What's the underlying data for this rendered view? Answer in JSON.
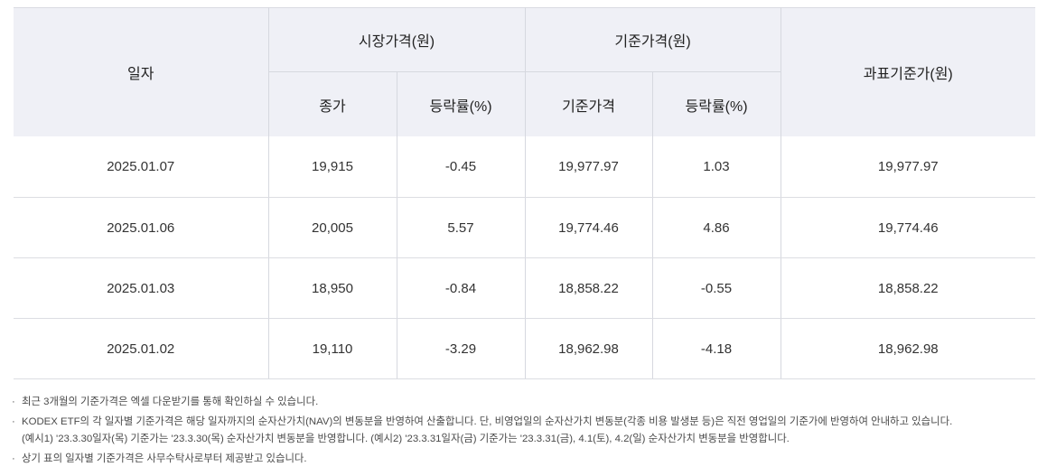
{
  "table": {
    "headers": {
      "date": "일자",
      "market_price_group": "시장가격(원)",
      "close": "종가",
      "market_change": "등락률(%)",
      "nav_group": "기준가격(원)",
      "nav": "기준가격",
      "nav_change": "등락률(%)",
      "tax_base": "과표기준가(원)"
    },
    "rows": [
      {
        "date": "2025.01.07",
        "close": "19,915",
        "market_change": "-0.45",
        "nav": "19,977.97",
        "nav_change": "1.03",
        "tax_base": "19,977.97"
      },
      {
        "date": "2025.01.06",
        "close": "20,005",
        "market_change": "5.57",
        "nav": "19,774.46",
        "nav_change": "4.86",
        "tax_base": "19,774.46"
      },
      {
        "date": "2025.01.03",
        "close": "18,950",
        "market_change": "-0.84",
        "nav": "18,858.22",
        "nav_change": "-0.55",
        "tax_base": "18,858.22"
      },
      {
        "date": "2025.01.02",
        "close": "19,110",
        "market_change": "-3.29",
        "nav": "18,962.98",
        "nav_change": "-4.18",
        "tax_base": "18,962.98"
      }
    ]
  },
  "notes": {
    "bullet": "·",
    "line1": "최근 3개월의 기준가격은 엑셀 다운받기를 통해 확인하실 수 있습니다.",
    "line2": "KODEX ETF의 각 일자별 기준가격은 해당 일자까지의 순자산가치(NAV)의 변동분을 반영하여 산출합니다. 단, 비영업일의 순자산가치 변동분(각종 비용 발생분 등)은 직전 영업일의 기준가에 반영하여 안내하고 있습니다.",
    "line2_cont": "(예시1) '23.3.30일자(목) 기준가는 '23.3.30(목) 순자산가치 변동분을 반영합니다. (예시2) '23.3.31일자(금) 기준가는 '23.3.31(금), 4.1(토), 4.2(일) 순자산가치 변동분을 반영합니다.",
    "line3": "상기 표의 일자별 기준가격은 사무수탁사로부터 제공받고 있습니다."
  },
  "colors": {
    "positive": "#e0282f",
    "negative": "#2a62e0",
    "header_bg": "#eff0f6"
  }
}
